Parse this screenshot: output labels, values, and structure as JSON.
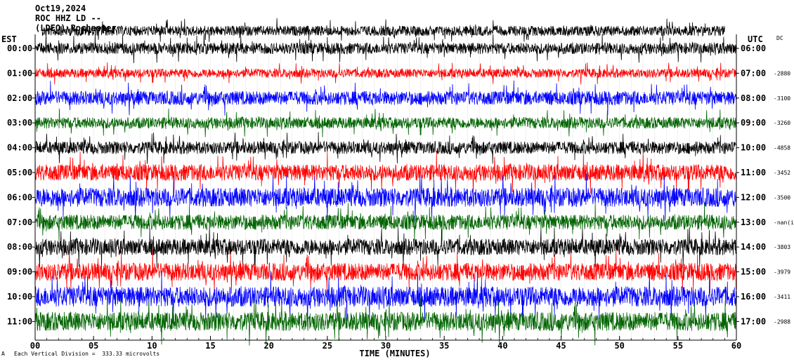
{
  "header": {
    "date": "Oct19,2024",
    "station": "ROC HHZ LD --",
    "network": "(LDEO) Rochester"
  },
  "chart_data": {
    "type": "line",
    "title": "",
    "xlabel": "TIME (MINUTES)",
    "ylabel": "",
    "left_axis_label": "EST",
    "right_axis_label": "UTC",
    "right_column_label": "DC",
    "xlim": [
      0,
      60
    ],
    "x_ticks": [
      "00",
      "05",
      "10",
      "15",
      "20",
      "25",
      "30",
      "35",
      "40",
      "45",
      "50",
      "55",
      "60"
    ],
    "est_labels": [
      "00:00",
      "01:00",
      "02:00",
      "03:00",
      "04:00",
      "05:00",
      "06:00",
      "07:00",
      "08:00",
      "09:00",
      "10:00",
      "11:00"
    ],
    "utc_labels": [
      "06:00",
      "07:00",
      "08:00",
      "09:00",
      "10:00",
      "11:00",
      "12:00",
      "13:00",
      "14:00",
      "15:00",
      "16:00",
      "17:00"
    ],
    "dc_offsets": [
      "",
      "-2880",
      "-3100",
      "-3260",
      "-4858",
      "-3452",
      "-3500",
      "-nan(ind)",
      "-3803",
      "-3979",
      "-3411",
      "-2988"
    ],
    "trace_colors": [
      "#000000",
      "#ff0000",
      "#0000ff",
      "#006400"
    ],
    "top_partial_trace_color": "#000000",
    "footer_note": "Each Vertical Division =  333.33 microvolts",
    "footer_mark": "A",
    "amplitude_pattern": [
      0.9,
      0.7,
      1.1,
      0.9,
      1.0,
      1.3,
      1.5,
      1.2,
      1.3,
      1.4,
      1.6,
      1.5
    ]
  }
}
